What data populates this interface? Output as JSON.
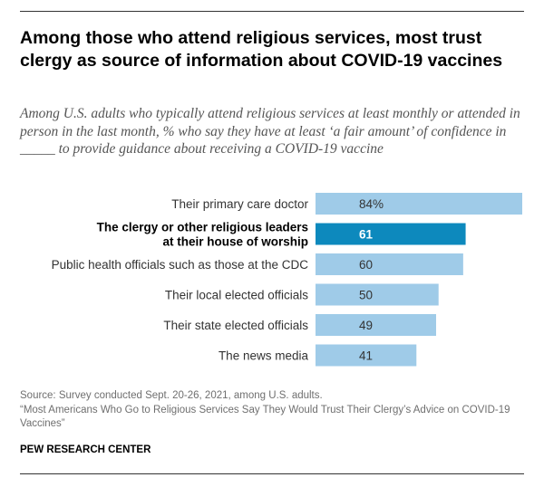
{
  "title": "Among those who attend religious services, most trust clergy as source of information about COVID-19 vaccines",
  "subtitle": "Among U.S. adults who typically attend religious services at least monthly or attended in person in the last month, % who say they have at least ‘a fair amount’ of confidence in _____ to provide guidance about receiving a COVID-19 vaccine",
  "source_line1": "Source: Survey conducted Sept. 20-26, 2021, among U.S. adults.",
  "source_line2": "“Most Americans Who Go to Religious Services Say They Would Trust Their Clergy’s Advice on COVID-19 Vaccines”",
  "brand": "PEW RESEARCH CENTER",
  "colors": {
    "bar": "#9fcbe8",
    "highlight": "#0d89bd"
  },
  "chart_data": {
    "type": "bar",
    "orientation": "horizontal",
    "title": "Among those who attend religious services, most trust clergy as source of information about COVID-19 vaccines",
    "xlabel": "",
    "ylabel": "",
    "xlim": [
      0,
      84
    ],
    "categories": [
      [
        "Their primary care doctor"
      ],
      [
        "The clergy or other religious leaders",
        "at their house of worship"
      ],
      [
        "Public health officials such as those at the CDC"
      ],
      [
        "Their local elected officials"
      ],
      [
        "Their state elected officials"
      ],
      [
        "The news media"
      ]
    ],
    "values": [
      84,
      61,
      60,
      50,
      49,
      41
    ],
    "value_labels": [
      "84%",
      "61",
      "60",
      "50",
      "49",
      "41"
    ],
    "highlight_index": 1
  }
}
